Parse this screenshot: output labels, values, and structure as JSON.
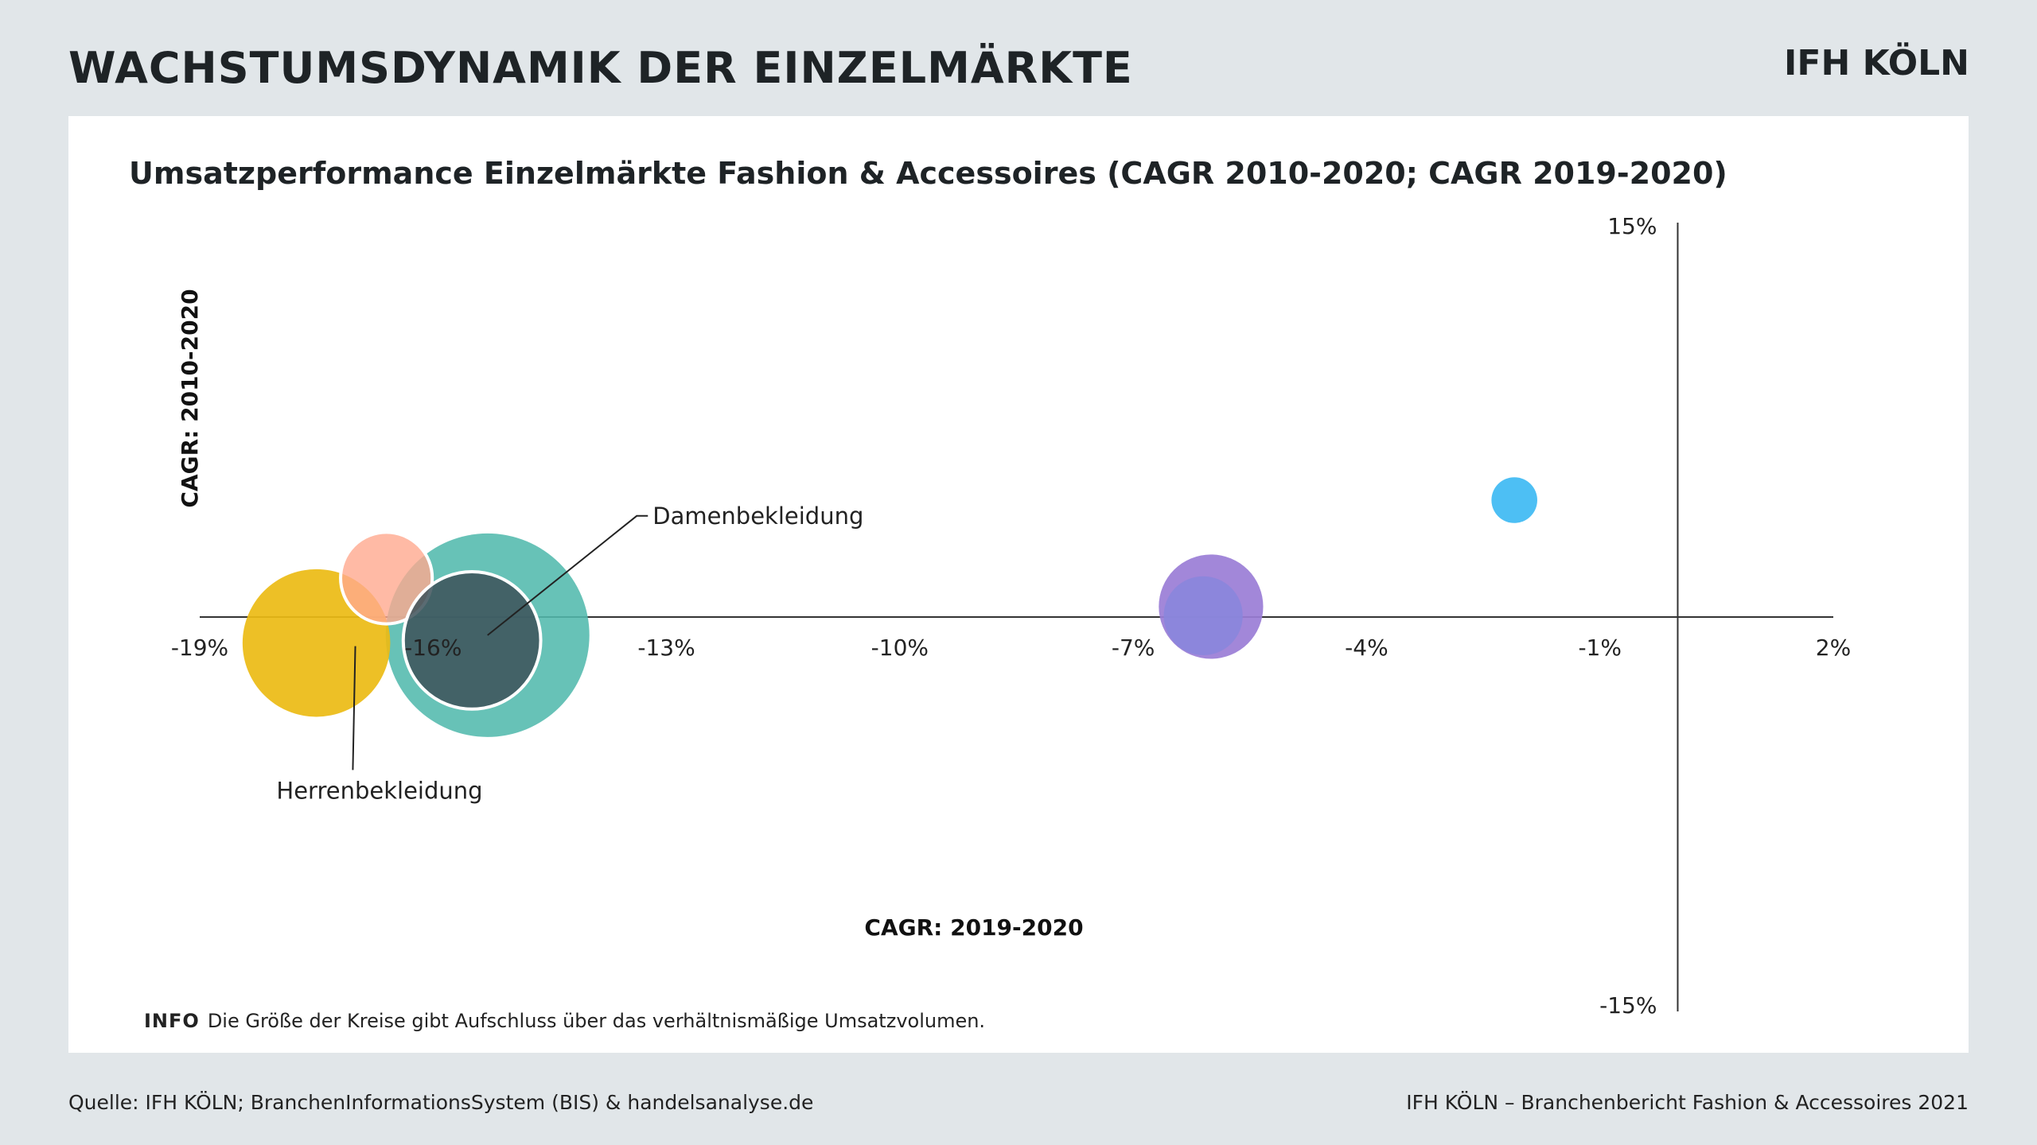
{
  "header": {
    "title": "WACHSTUMSDYNAMIK DER EINZELMÄRKTE",
    "logo": "IFH KÖLN"
  },
  "chart_data": {
    "type": "scatter",
    "title": "Umsatzperformance Einzelmärkte Fashion & Accessoires (CAGR 2010-2020; CAGR 2019-2020)",
    "xlabel": "CAGR: 2019-2020",
    "ylabel": "CAGR: 2010-2020",
    "xlim": [
      -19,
      2
    ],
    "ylim": [
      -15,
      15
    ],
    "x_ticks": [
      "-19%",
      "-16%",
      "-13%",
      "-10%",
      "-7%",
      "-4%",
      "-1%",
      "2%"
    ],
    "x_tick_values": [
      -19,
      -16,
      -13,
      -10,
      -7,
      -4,
      -1,
      2
    ],
    "y_ticks": [
      "15%",
      "-15%"
    ],
    "y_tick_values": [
      15,
      -15
    ],
    "grid": false,
    "note": "Die Größe der Kreise gibt Aufschluss über das verhältnismäßige Umsatzvolumen.",
    "points": [
      {
        "x": -15.3,
        "y": -0.7,
        "size": 80,
        "color": "#52b9ad",
        "opacity": 0.88,
        "outline": false,
        "label": ""
      },
      {
        "x": -17.5,
        "y": -1.0,
        "size": 58,
        "color": "#ecbb14",
        "opacity": 0.92,
        "outline": false,
        "label": ""
      },
      {
        "x": -16.6,
        "y": 1.5,
        "size": 36,
        "color": "#ffa98e",
        "opacity": 0.8,
        "outline": true,
        "label": ""
      },
      {
        "x": -15.5,
        "y": -0.9,
        "size": 54,
        "color": "#3d5159",
        "opacity": 0.85,
        "outline": true,
        "label": ""
      },
      {
        "x": -6.0,
        "y": 0.4,
        "size": 41,
        "color": "#9a7dd6",
        "opacity": 0.92,
        "outline": false,
        "label": ""
      },
      {
        "x": -6.1,
        "y": 0.05,
        "size": 31,
        "color": "#8a86dc",
        "opacity": 0.9,
        "outline": false,
        "label": ""
      },
      {
        "x": -2.1,
        "y": 4.5,
        "size": 18,
        "color": "#4dbff4",
        "opacity": 1.0,
        "outline": false,
        "label": ""
      }
    ],
    "annotations": [
      {
        "text": "Damenbekleidung",
        "point_x": -15.3,
        "point_y": -0.7,
        "label_x": -13.3,
        "label_y": 4.2
      },
      {
        "text": "Herrenbekleidung",
        "point_x": -17.0,
        "point_y": -1.0,
        "label_x": -17.4,
        "label_y": -6.5
      }
    ],
    "info_label": "INFO"
  },
  "footer": {
    "source": "Quelle: IFH KÖLN; BranchenInformationsSystem (BIS) & handelsanalyse.de",
    "report": "IFH KÖLN – Branchenbericht Fashion & Accessoires 2021"
  }
}
